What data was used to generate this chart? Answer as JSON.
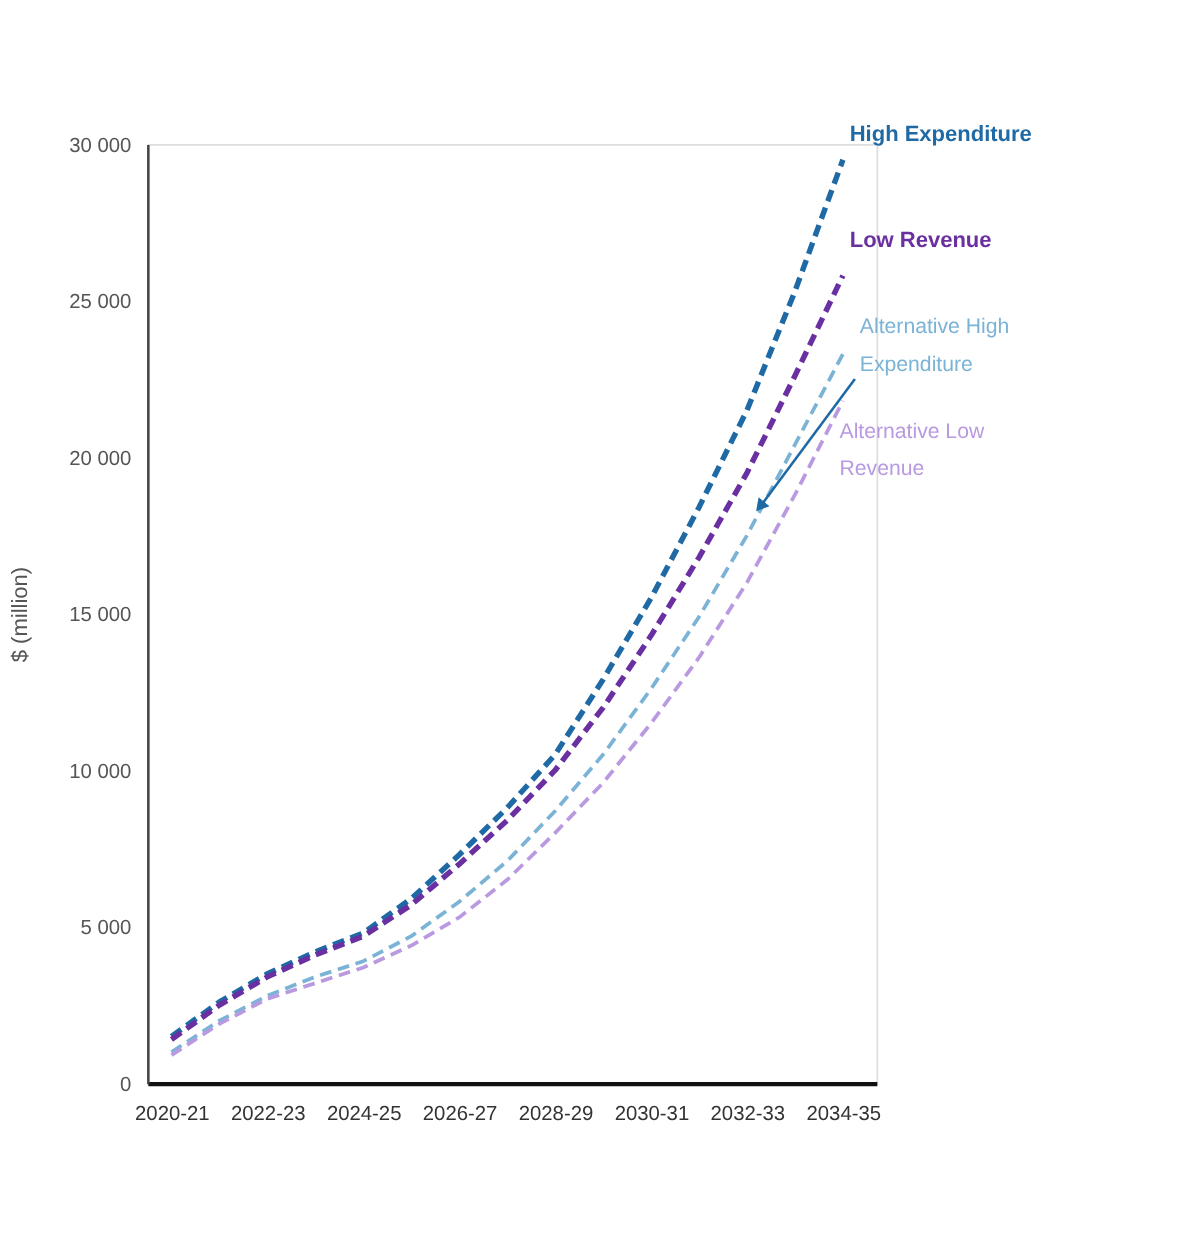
{
  "chart_data": {
    "type": "line",
    "ylabel": "$ (million)",
    "categories": [
      "2020-21",
      null,
      "2022-23",
      null,
      "2024-25",
      null,
      "2026-27",
      null,
      "2028-29",
      null,
      "2030-31",
      null,
      "2032-33",
      null,
      "2034-35"
    ],
    "series": [
      {
        "name": "High Expenditure",
        "color": "#1f6aa5",
        "values": [
          1500,
          2600,
          3500,
          4200,
          4800,
          5900,
          7300,
          8800,
          10500,
          12900,
          15500,
          18400,
          21500,
          25300,
          29500
        ]
      },
      {
        "name": "Low Revenue",
        "color": "#6a2fa0",
        "values": [
          1400,
          2500,
          3400,
          4100,
          4700,
          5700,
          7000,
          8400,
          10000,
          12000,
          14300,
          16800,
          19500,
          22600,
          25800
        ]
      },
      {
        "name": "Alternative High Expenditure",
        "color": "#7bb3d6",
        "values": [
          1000,
          2000,
          2800,
          3400,
          3900,
          4700,
          5800,
          7100,
          8700,
          10500,
          12600,
          14900,
          17500,
          20400,
          23300
        ]
      },
      {
        "name": "Alternative Low Revenue",
        "color": "#b99ae0",
        "values": [
          900,
          1900,
          2700,
          3200,
          3700,
          4400,
          5300,
          6500,
          8000,
          9600,
          11500,
          13600,
          16000,
          18800,
          21800
        ]
      }
    ],
    "ylim": [
      0,
      30000
    ],
    "yticks": [
      0,
      {
        "value": 5000,
        "label": "5 000"
      },
      {
        "value": 10000,
        "label": "10 000"
      },
      {
        "value": 15000,
        "label": "15 000"
      },
      {
        "value": 20000,
        "label": "20 000"
      },
      {
        "value": 25000,
        "label": "25 000"
      },
      {
        "value": 30000,
        "label": "30 000"
      }
    ],
    "grid": false,
    "legend": false,
    "line_style": "dashed",
    "marker": "none"
  }
}
